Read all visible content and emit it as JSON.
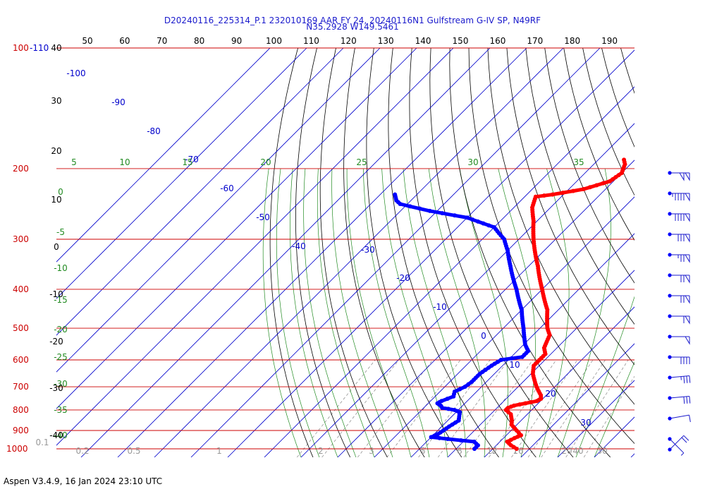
{
  "header": {
    "line1": "D20240116_225314_P.1 232010169 AAR FY 24, 20240116N1 Gulfstream G-IV SP, N49RF",
    "line2": "N35.2928 W149.5461"
  },
  "footer": {
    "text": "Aspen V3.4.9, 16 Jan 2024  23:10 UTC"
  },
  "colors": {
    "isobar": "#cc0000",
    "isotherm": "#0000cc",
    "dry_adiabat": "#000000",
    "moist_adiabat": "#228b22",
    "mixing_ratio": "#888888",
    "mixing_label": "#999999",
    "temperature": "#ff0000",
    "dewpoint": "#0000ff",
    "wind": "#1a1acc"
  },
  "chart_data": {
    "type": "skew-t",
    "pressure_labels": [
      {
        "p": 1000,
        "text": "1000"
      },
      {
        "p": 900,
        "text": "900"
      },
      {
        "p": 800,
        "text": "800"
      },
      {
        "p": 700,
        "text": "700"
      },
      {
        "p": 600,
        "text": "600"
      },
      {
        "p": 500,
        "text": "500"
      },
      {
        "p": 400,
        "text": "400"
      },
      {
        "p": 300,
        "text": "300"
      },
      {
        "p": 200,
        "text": "200"
      },
      {
        "p": 100,
        "text": "100"
      }
    ],
    "top_label_extra": "-110",
    "isotherm_labels": [
      {
        "t": -100,
        "text": "-100"
      },
      {
        "t": -90,
        "text": "-90"
      },
      {
        "t": -80,
        "text": "-80"
      },
      {
        "t": -70,
        "text": "-70"
      },
      {
        "t": -60,
        "text": "-60"
      },
      {
        "t": -50,
        "text": "-50"
      },
      {
        "t": -40,
        "text": "-40"
      },
      {
        "t": -30,
        "text": "-30"
      },
      {
        "t": -20,
        "text": "-20"
      },
      {
        "t": -10,
        "text": "-10"
      },
      {
        "t": 0,
        "text": "0"
      },
      {
        "t": 10,
        "text": "10"
      },
      {
        "t": 20,
        "text": "20"
      },
      {
        "t": 30,
        "text": "30"
      }
    ],
    "potential_temp_labels": [
      "50",
      "60",
      "70",
      "80",
      "90",
      "100",
      "110",
      "120",
      "130",
      "140",
      "150",
      "160",
      "170",
      "180",
      "190"
    ],
    "moist_top_labels": [
      {
        "theta_e": 5,
        "text": "5"
      },
      {
        "theta_e": 10,
        "text": "10"
      },
      {
        "theta_e": 15,
        "text": "15"
      },
      {
        "theta_e": 20,
        "text": "20"
      },
      {
        "theta_e": 25,
        "text": "25"
      },
      {
        "theta_e": 30,
        "text": "30"
      },
      {
        "theta_e": 35,
        "text": "35"
      }
    ],
    "moist_left_labels": [
      "0",
      "-5",
      "-10",
      "-15",
      "-20",
      "-25",
      "-30",
      "-35",
      "-40"
    ],
    "dry_left_labels": [
      "40",
      "30",
      "20",
      "10",
      "0",
      "-10",
      "-20",
      "-30",
      "-40"
    ],
    "mixing_ratio_labels": [
      "0.1",
      "0.2",
      "0.5",
      "1",
      "2",
      "3",
      "5",
      "8",
      "12",
      "16",
      "20",
      "30",
      "40"
    ],
    "temperature_profile": [
      [
        1000,
        16.5
      ],
      [
        980,
        14.0
      ],
      [
        960,
        12.0
      ],
      [
        940,
        13.0
      ],
      [
        925,
        14.0
      ],
      [
        900,
        11.5
      ],
      [
        870,
        8.5
      ],
      [
        850,
        7.5
      ],
      [
        820,
        5.5
      ],
      [
        800,
        3.0
      ],
      [
        790,
        3.0
      ],
      [
        780,
        4.0
      ],
      [
        770,
        6.5
      ],
      [
        760,
        9.0
      ],
      [
        750,
        9.5
      ],
      [
        735,
        8.5
      ],
      [
        700,
        5.0
      ],
      [
        650,
        0.5
      ],
      [
        620,
        -1.5
      ],
      [
        600,
        -1.5
      ],
      [
        580,
        -1.5
      ],
      [
        560,
        -3.5
      ],
      [
        520,
        -5.5
      ],
      [
        500,
        -8.0
      ],
      [
        450,
        -13.0
      ],
      [
        400,
        -20.0
      ],
      [
        350,
        -27.5
      ],
      [
        300,
        -36.0
      ],
      [
        270,
        -41.0
      ],
      [
        250,
        -45.0
      ],
      [
        235,
        -47.0
      ],
      [
        232,
        -43.0
      ],
      [
        225,
        -36.0
      ],
      [
        215,
        -31.0
      ],
      [
        205,
        -30.0
      ],
      [
        195,
        -31.5
      ],
      [
        190,
        -33.0
      ]
    ],
    "dewpoint_profile": [
      [
        1000,
        5.0
      ],
      [
        980,
        5.0
      ],
      [
        960,
        3.0
      ],
      [
        945,
        -5.0
      ],
      [
        935,
        -10.0
      ],
      [
        920,
        -9.0
      ],
      [
        880,
        -8.0
      ],
      [
        850,
        -7.0
      ],
      [
        830,
        -8.0
      ],
      [
        810,
        -9.0
      ],
      [
        800,
        -11.0
      ],
      [
        790,
        -15.0
      ],
      [
        780,
        -16.0
      ],
      [
        770,
        -17.5
      ],
      [
        760,
        -17.0
      ],
      [
        740,
        -15.0
      ],
      [
        720,
        -16.0
      ],
      [
        700,
        -14.5
      ],
      [
        680,
        -14.0
      ],
      [
        650,
        -14.0
      ],
      [
        620,
        -13.0
      ],
      [
        600,
        -12.0
      ],
      [
        590,
        -7.0
      ],
      [
        570,
        -7.0
      ],
      [
        550,
        -9.5
      ],
      [
        500,
        -14.5
      ],
      [
        450,
        -20.0
      ],
      [
        400,
        -27.0
      ],
      [
        350,
        -35.0
      ],
      [
        320,
        -40.0
      ],
      [
        300,
        -44.0
      ],
      [
        280,
        -50.0
      ],
      [
        265,
        -60.0
      ],
      [
        255,
        -72.0
      ],
      [
        245,
        -82.0
      ],
      [
        240,
        -84.0
      ],
      [
        232,
        -86.0
      ]
    ],
    "wind_barbs": [
      {
        "p": 1000,
        "dir": 225,
        "speed_kt": 20
      },
      {
        "p": 980,
        "dir": 315,
        "speed_kt": 5
      },
      {
        "p": 950,
        "dir": 260,
        "speed_kt": 10
      },
      {
        "p": 900,
        "dir": 265,
        "speed_kt": 30
      },
      {
        "p": 850,
        "dir": 265,
        "speed_kt": 35
      },
      {
        "p": 800,
        "dir": 270,
        "speed_kt": 40
      },
      {
        "p": 750,
        "dir": 270,
        "speed_kt": 50
      },
      {
        "p": 700,
        "dir": 270,
        "speed_kt": 60
      },
      {
        "p": 650,
        "dir": 270,
        "speed_kt": 70
      },
      {
        "p": 600,
        "dir": 270,
        "speed_kt": 70
      },
      {
        "p": 550,
        "dir": 270,
        "speed_kt": 75
      },
      {
        "p": 500,
        "dir": 270,
        "speed_kt": 80
      },
      {
        "p": 450,
        "dir": 270,
        "speed_kt": 90
      },
      {
        "p": 400,
        "dir": 270,
        "speed_kt": 95
      },
      {
        "p": 350,
        "dir": 270,
        "speed_kt": 100
      },
      {
        "p": 300,
        "dir": 270,
        "speed_kt": 100
      },
      {
        "p": 265,
        "dir": 270,
        "speed_kt": 110
      },
      {
        "p": 240,
        "dir": 265,
        "speed_kt": 110
      },
      {
        "p": 215,
        "dir": 260,
        "speed_kt": 110
      }
    ],
    "wind_units": "kt"
  }
}
